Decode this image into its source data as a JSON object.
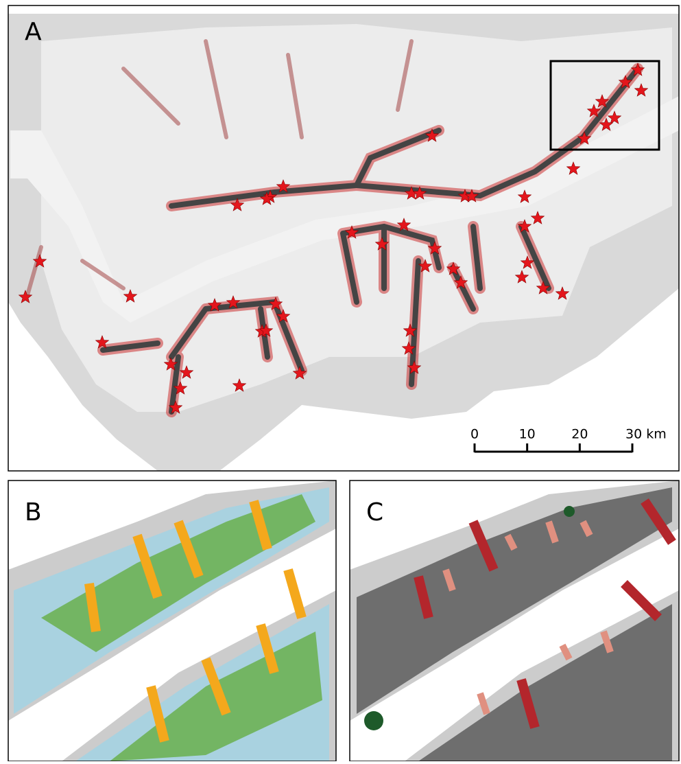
{
  "panels": {
    "a": {
      "label": "A"
    },
    "b": {
      "label": "B"
    },
    "c": {
      "label": "C"
    }
  },
  "scale_bar": {
    "ticks": [
      0,
      10,
      20,
      {
        "value": 30,
        "label": "30 km"
      }
    ]
  }
}
